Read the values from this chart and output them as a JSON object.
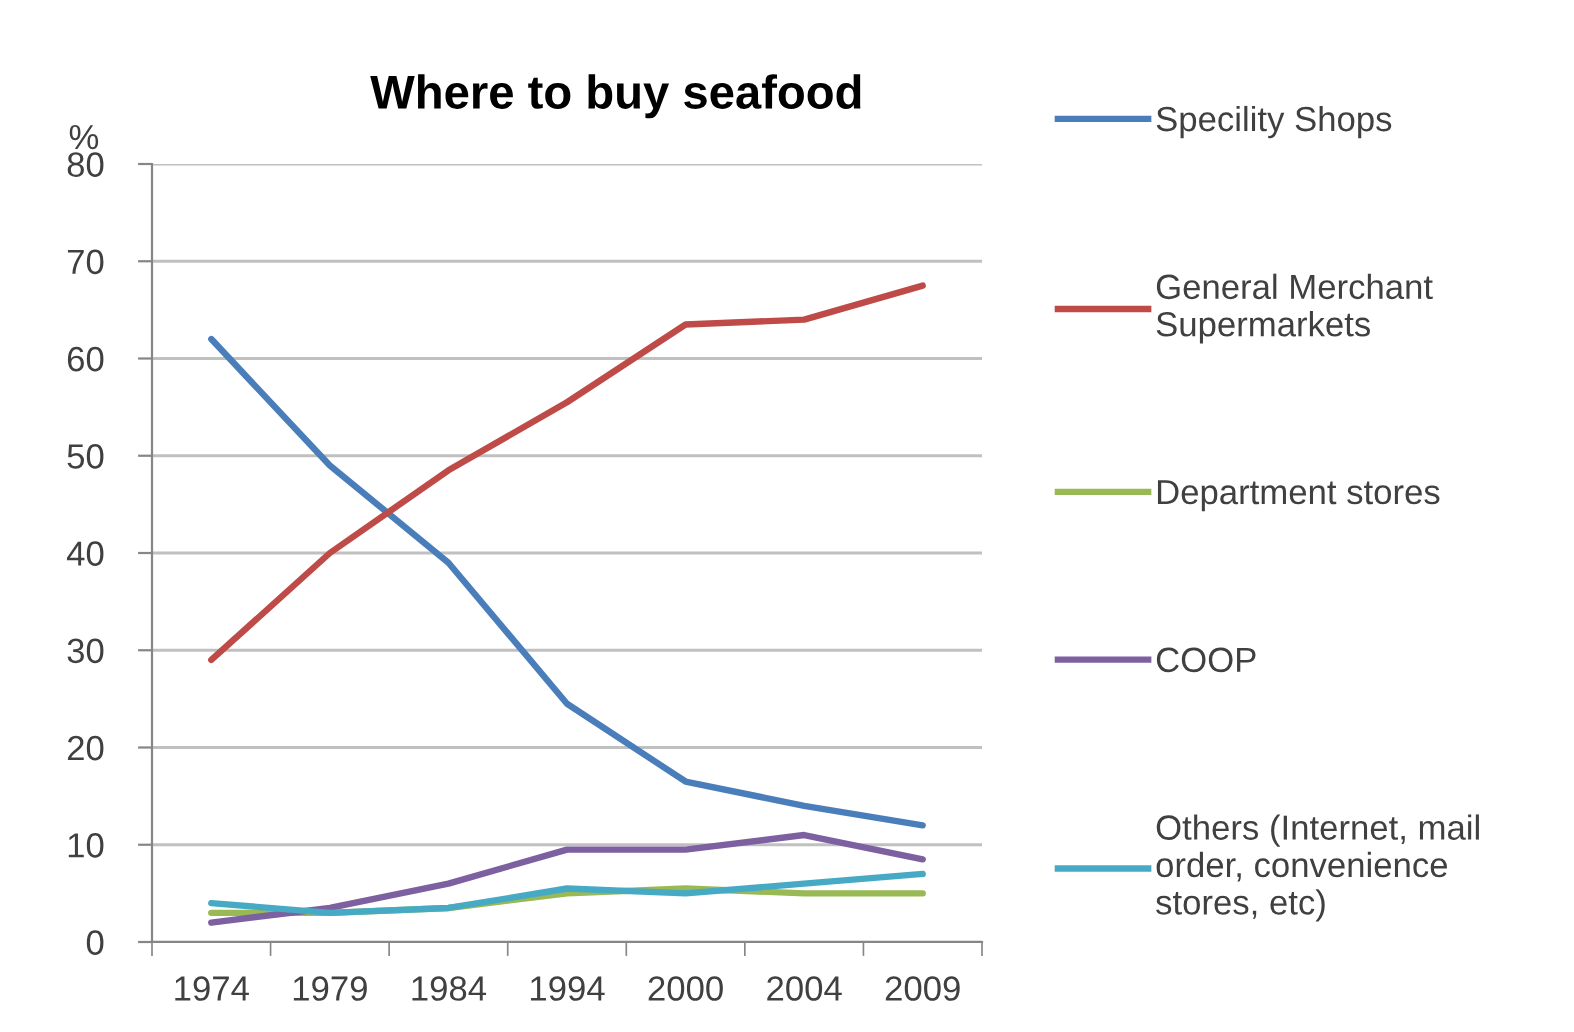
{
  "chart_data": {
    "type": "line",
    "title": "Where to buy seafood",
    "ylabel": "%",
    "categories": [
      "1974",
      "1979",
      "1984",
      "1994",
      "2000",
      "2004",
      "2009"
    ],
    "series": [
      {
        "name": "Specility Shops",
        "color": "#4a7ebb",
        "values": [
          62,
          49,
          39,
          24.5,
          16.5,
          14,
          12
        ]
      },
      {
        "name": "General Merchant\nSupermarkets",
        "color": "#be4b48",
        "values": [
          29,
          40,
          48.5,
          55.5,
          63.5,
          64,
          67.5
        ]
      },
      {
        "name": "Department stores",
        "color": "#98b954",
        "values": [
          3,
          3,
          3.5,
          5,
          5.5,
          5,
          5
        ]
      },
      {
        "name": "COOP",
        "color": "#7d60a0",
        "values": [
          2,
          3.5,
          6,
          9.5,
          9.5,
          11,
          8.5
        ]
      },
      {
        "name": "Others (Internet, mail\norder, convenience\nstores, etc)",
        "color": "#46aac5",
        "values": [
          4,
          3,
          3.5,
          5.5,
          5,
          6,
          7
        ]
      }
    ],
    "ylim": [
      0,
      80
    ],
    "yticks": [
      0,
      10,
      20,
      30,
      40,
      50,
      60,
      70,
      80
    ],
    "grid": "y",
    "legend": "right",
    "line_style": "solid"
  }
}
